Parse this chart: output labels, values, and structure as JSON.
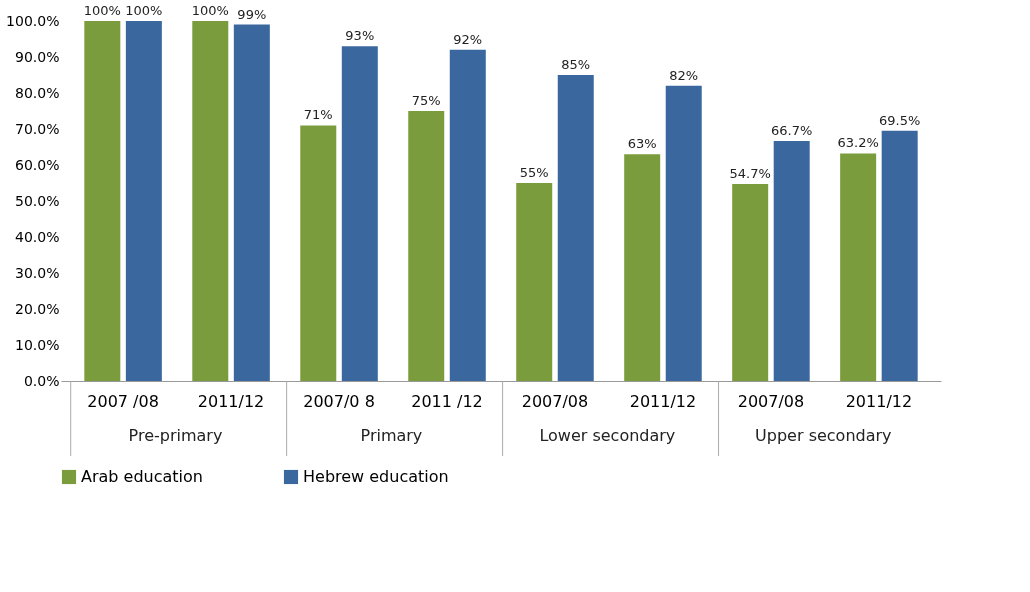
{
  "chart_data": {
    "type": "bar",
    "categories": [
      "2007 /08",
      "2011/12",
      "2007/0 8",
      "2011 /12",
      "2007/08",
      "2011/12",
      "2007/08",
      "2011/12"
    ],
    "series": [
      {
        "name": "Arab education",
        "color": "#7b9c3c",
        "values": [
          100,
          100,
          71,
          75,
          55,
          63,
          54.7,
          63.2
        ],
        "value_labels": [
          "100%",
          "100%",
          "71%",
          "75%",
          "55%",
          "63%",
          "54.7%",
          "63.2%"
        ]
      },
      {
        "name": "Hebrew education",
        "color": "#3a679e",
        "values": [
          100,
          99,
          93,
          92,
          85,
          82,
          66.7,
          69.5
        ],
        "value_labels": [
          "100%",
          "99%",
          "93%",
          "92%",
          "85%",
          "82%",
          "66.7%",
          "69.5%"
        ]
      }
    ],
    "ylim": [
      0,
      100
    ],
    "yticks": [
      {
        "value": 0,
        "label": "0.0%"
      },
      {
        "value": 10,
        "label": "10.0%"
      },
      {
        "value": 20,
        "label": "20.0%"
      },
      {
        "value": 30,
        "label": "30.0%"
      },
      {
        "value": 40,
        "label": "40.0%"
      },
      {
        "value": 50,
        "label": "50.0%"
      },
      {
        "value": 60,
        "label": "60.0%"
      },
      {
        "value": 70,
        "label": "70.0%"
      },
      {
        "value": 80,
        "label": "80.0%"
      },
      {
        "value": 90,
        "label": "90.0%"
      },
      {
        "value": 100,
        "label": "100.0%"
      }
    ],
    "annotations": [
      "Pre-primary",
      "Primary",
      "Lower secondary",
      "Upper secondary"
    ],
    "grid": false,
    "legend": "bottom"
  }
}
